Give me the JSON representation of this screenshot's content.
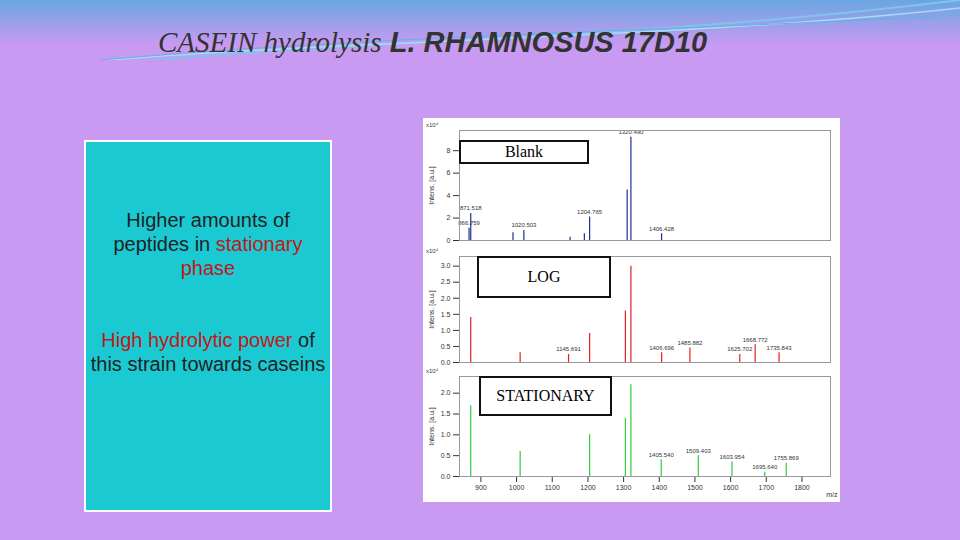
{
  "slide": {
    "title_parts": [
      "CASEIN hydrolysis",
      "L. RHAMNOSUS 17D10"
    ],
    "bullets": [
      {
        "parts": [
          {
            "text": "Higher amounts of peptides in ",
            "emphasis": false
          },
          {
            "text": "stationary phase",
            "emphasis": true
          }
        ]
      },
      {
        "parts": [
          {
            "text": "High hydrolytic power",
            "emphasis": true
          },
          {
            "text": " of this strain towards caseins",
            "emphasis": false
          }
        ]
      }
    ]
  },
  "chart_data": [
    {
      "type": "stem",
      "title": "Blank",
      "color": "#1f2f8f",
      "x": [
        866.759,
        871.518,
        990,
        1020.503,
        1150,
        1190,
        1204.765,
        1310,
        1320.49,
        1406.428
      ],
      "values": [
        1.1,
        2.4,
        0.7,
        0.9,
        0.3,
        0.6,
        2.1,
        4.5,
        9.2,
        0.6
      ],
      "peak_labels": [
        "866.759",
        "871.518",
        null,
        "1020.503",
        null,
        null,
        "1204.765",
        null,
        "1320.490",
        "1406.428"
      ],
      "xlim": [
        840,
        1880
      ],
      "xticks": [
        900,
        1000,
        1100,
        1200,
        1300,
        1400,
        1500,
        1600,
        1700,
        1800
      ],
      "ylim": [
        0,
        9.8
      ],
      "yticks": [
        0,
        2,
        4,
        6,
        8
      ],
      "ylabel": "Intens. [a.u.]",
      "annotations": [
        "x10⁴"
      ],
      "tick_labels": "y"
    },
    {
      "type": "stem",
      "title": "LOG",
      "color": "#e02020",
      "x": [
        871.5,
        1010,
        1145.691,
        1204.8,
        1305,
        1320.5,
        1406.696,
        1485.882,
        1625.702,
        1668.772,
        1735.843
      ],
      "values": [
        1.4,
        0.3,
        0.25,
        0.9,
        1.6,
        3.0,
        0.3,
        0.45,
        0.25,
        0.55,
        0.3
      ],
      "peak_labels": [
        null,
        null,
        "1145.691",
        null,
        null,
        null,
        "1406.696",
        "1485.882",
        "1625.702",
        "1668.772",
        "1735.843"
      ],
      "xlim": [
        840,
        1880
      ],
      "xticks": [
        900,
        1000,
        1100,
        1200,
        1300,
        1400,
        1500,
        1600,
        1700,
        1800
      ],
      "ylim": [
        0,
        3.3
      ],
      "yticks": [
        {
          "value": 0,
          "label": "0.0"
        },
        {
          "value": 0.5,
          "label": "0.5"
        },
        {
          "value": 1,
          "label": "1.0"
        },
        {
          "value": 1.5,
          "label": "1.5"
        },
        {
          "value": 2,
          "label": "2.0"
        },
        {
          "value": 2.5,
          "label": "2.5"
        },
        {
          "value": 3,
          "label": "3.0"
        }
      ],
      "ylabel": "Intens. [a.u.]",
      "annotations": [
        "x10⁴"
      ],
      "tick_labels": "y"
    },
    {
      "type": "stem",
      "title": "STATIONARY",
      "color": "#2ecc40",
      "x": [
        871.5,
        1010,
        1204.8,
        1305,
        1320.5,
        1405.54,
        1509.403,
        1603.954,
        1695.64,
        1755.869
      ],
      "values": [
        1.7,
        0.6,
        1.0,
        1.4,
        2.2,
        0.4,
        0.5,
        0.35,
        0.1,
        0.32
      ],
      "peak_labels": [
        null,
        null,
        null,
        null,
        null,
        "1405.540",
        "1509.403",
        "1603.954",
        "1695.640",
        "1755.869"
      ],
      "xlim": [
        840,
        1880
      ],
      "xticks": [
        900,
        1000,
        1100,
        1200,
        1300,
        1400,
        1500,
        1600,
        1700,
        1800
      ],
      "ylim": [
        0,
        2.4
      ],
      "yticks": [
        {
          "value": 0,
          "label": "0.0"
        },
        {
          "value": 0.5,
          "label": "0.5"
        },
        {
          "value": 1,
          "label": "1.0"
        },
        {
          "value": 1.5,
          "label": "1.5"
        },
        {
          "value": 2,
          "label": "2.0"
        }
      ],
      "xlabel": "m/z",
      "ylabel": "Intens. [a.u.]",
      "annotations": [
        "x10⁴"
      ]
    }
  ]
}
